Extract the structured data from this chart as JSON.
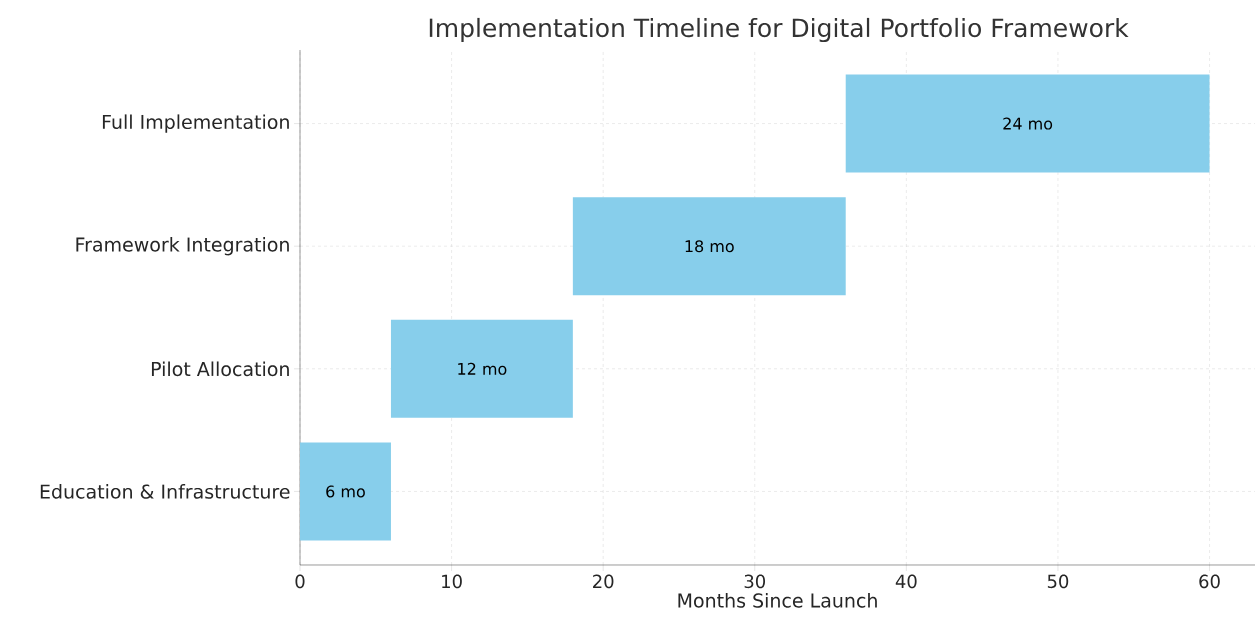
{
  "chart_data": {
    "type": "bar",
    "orientation": "horizontal",
    "title": "Implementation Timeline for Digital Portfolio Framework",
    "xlabel": "Months Since Launch",
    "categories": [
      "Full Implementation",
      "Framework Integration",
      "Pilot Allocation",
      "Education & Infrastructure"
    ],
    "base": [
      36,
      18,
      6,
      0
    ],
    "values": [
      24,
      18,
      12,
      6
    ],
    "value_labels": [
      "24 mo",
      "18 mo",
      "12 mo",
      "6 mo"
    ],
    "color": "#87ceeb",
    "xlim": [
      0,
      63
    ],
    "xticks": [
      0,
      10,
      20,
      30,
      40,
      50,
      60
    ],
    "grid": true
  }
}
